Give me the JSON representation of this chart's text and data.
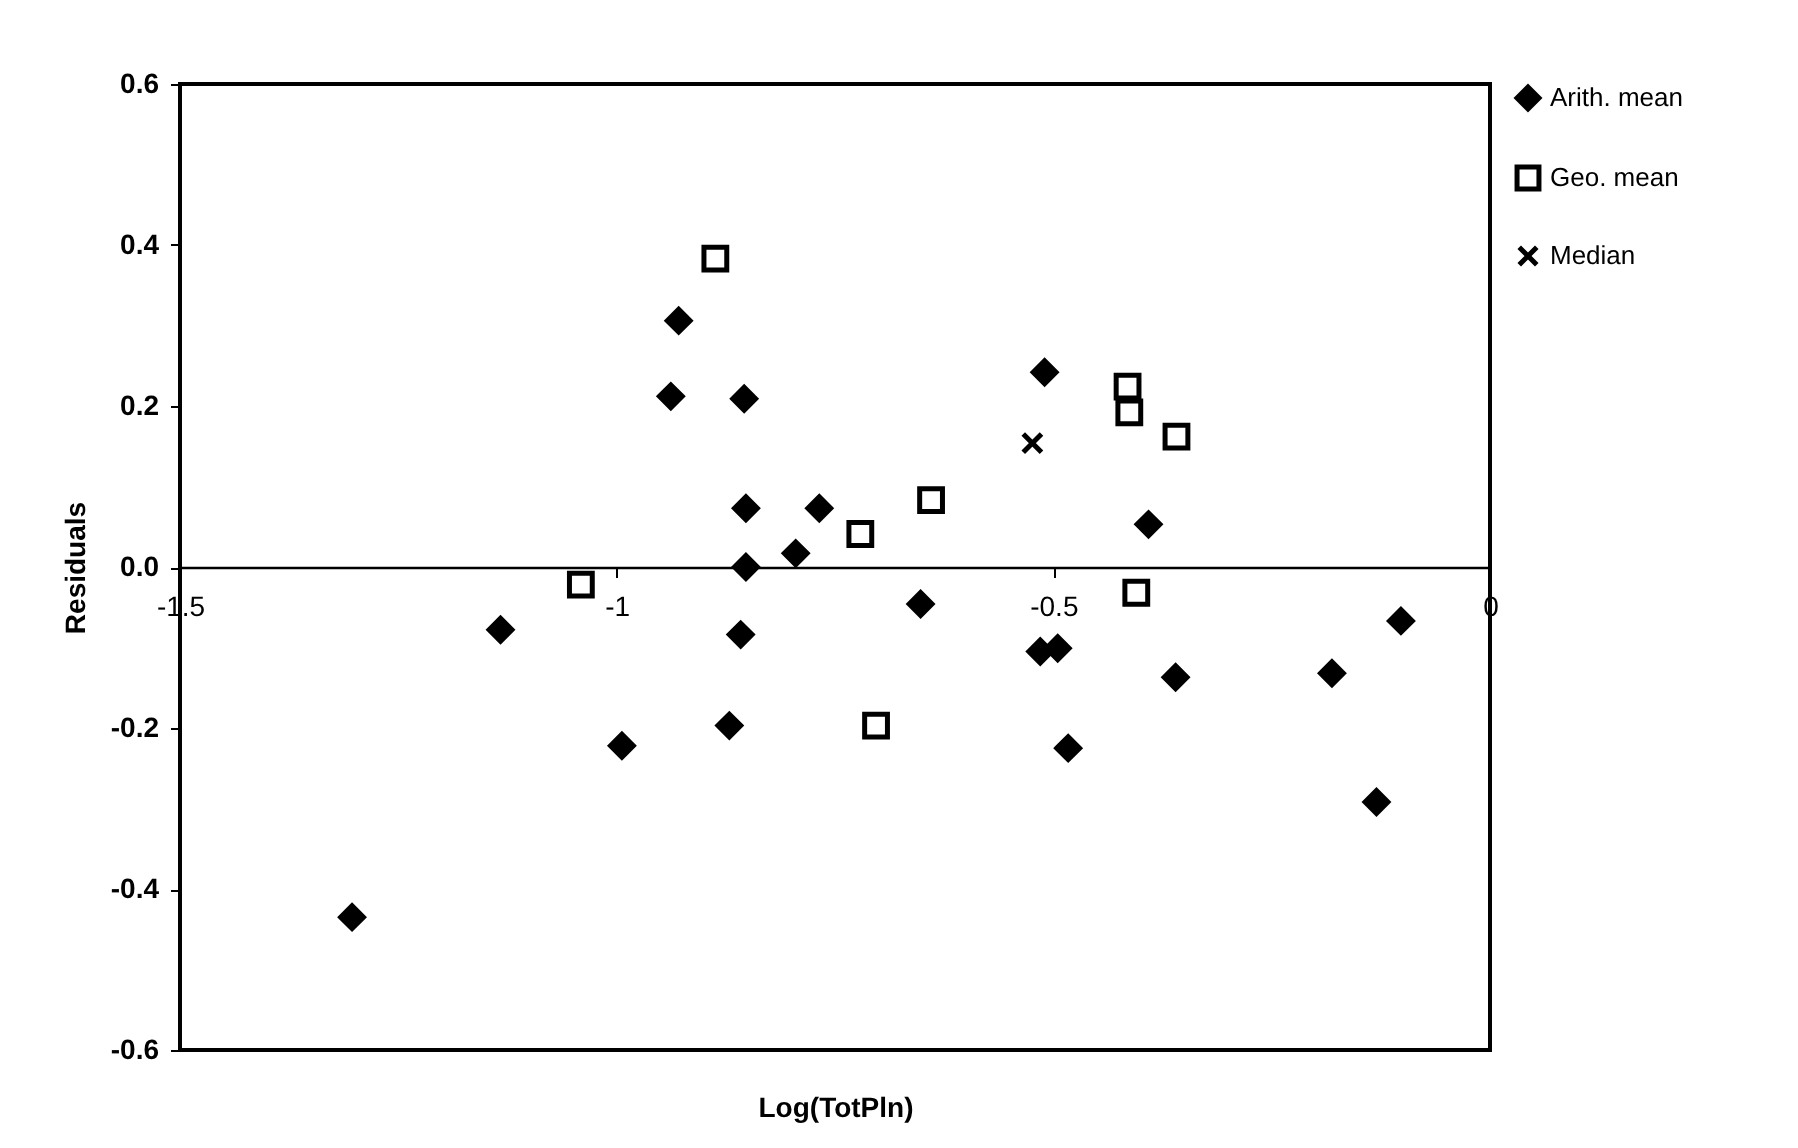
{
  "chart_data": {
    "type": "scatter",
    "xlabel": "Log(TotPln)",
    "ylabel": "Residuals",
    "xlim": [
      -1.5,
      0
    ],
    "xticks": [
      -1.5,
      -1,
      -0.5,
      0
    ],
    "ylim": [
      -0.6,
      0.6
    ],
    "yticks": [
      {
        "value": -0.6,
        "label": "-0.6"
      },
      {
        "value": -0.4,
        "label": "-0.4"
      },
      {
        "value": -0.2,
        "label": "-0.2"
      },
      {
        "value": 0,
        "label": "0.0"
      },
      {
        "value": 0.2,
        "label": "0.2"
      },
      {
        "value": 0.4,
        "label": "0.4"
      },
      {
        "value": 0.6,
        "label": "0.6"
      }
    ],
    "grid": false,
    "legend": "top right",
    "series": [
      {
        "name": "Arith. mean",
        "color": "#000000",
        "marker": "diamond",
        "x": [
          -1.303,
          -1.133,
          -0.994,
          -0.929,
          -0.938,
          -0.854,
          -0.852,
          -0.768,
          -0.795,
          -0.852,
          -0.858,
          -0.871,
          -0.652,
          -0.51,
          -0.515,
          -0.495,
          -0.483,
          -0.391,
          -0.36,
          -0.181,
          -0.102,
          -0.13
        ],
        "values": [
          -0.435,
          -0.078,
          -0.222,
          0.306,
          0.212,
          0.209,
          0.073,
          0.073,
          0.017,
          0.0,
          -0.084,
          -0.197,
          -0.046,
          0.242,
          -0.105,
          -0.101,
          -0.225,
          0.053,
          -0.137,
          -0.132,
          -0.067,
          -0.292
        ]
      },
      {
        "name": "Geo. mean",
        "color": "#000000",
        "marker": "square",
        "x": [
          -0.887,
          -1.041,
          -0.721,
          -0.64,
          -0.703,
          -0.415,
          -0.413,
          -0.359,
          -0.405
        ],
        "values": [
          0.383,
          -0.022,
          0.041,
          0.083,
          -0.197,
          0.224,
          0.192,
          0.162,
          -0.032
        ]
      },
      {
        "name": "Median",
        "color": "#000000",
        "marker": "cross",
        "x": [
          -0.524
        ],
        "values": [
          0.154
        ]
      }
    ]
  }
}
